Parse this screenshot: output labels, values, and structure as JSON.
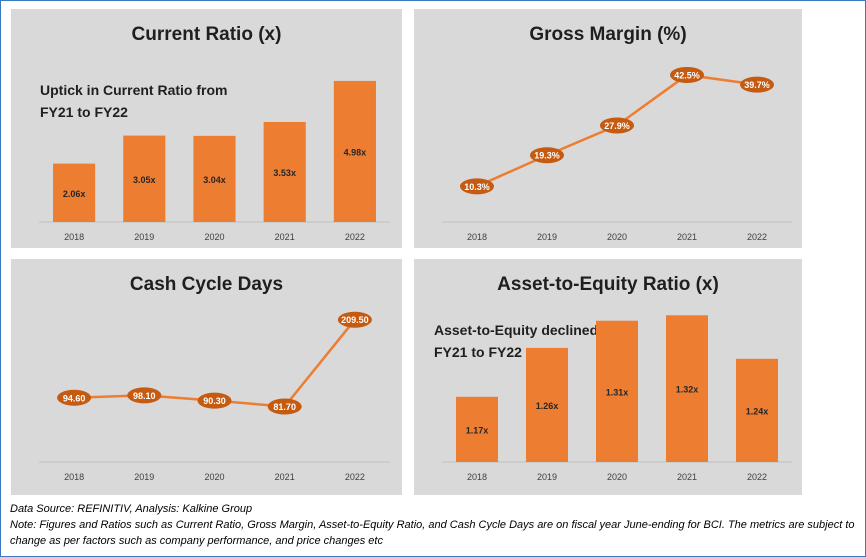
{
  "colors": {
    "accent": "#ed7d31",
    "marker": "#c55a11",
    "panel": "#d9d9d9",
    "axis": "#bfbfbf"
  },
  "chart_data": [
    {
      "type": "bar",
      "title": "Current Ratio (x)",
      "annotation": [
        "Uptick in Current Ratio from",
        "FY21 to FY22"
      ],
      "categories": [
        "2018",
        "2019",
        "2020",
        "2021",
        "2022"
      ],
      "values": [
        2.06,
        3.05,
        3.04,
        3.53,
        4.98
      ],
      "labels": [
        "2.06x",
        "3.05x",
        "3.04x",
        "3.53x",
        "4.98x"
      ],
      "ylim": [
        0,
        5.4
      ]
    },
    {
      "type": "line",
      "title": "Gross Margin (%)",
      "categories": [
        "2018",
        "2019",
        "2020",
        "2021",
        "2022"
      ],
      "values": [
        10.3,
        19.3,
        27.9,
        42.5,
        39.7
      ],
      "labels": [
        "10.3%",
        "19.3%",
        "27.9%",
        "42.5%",
        "39.7%"
      ],
      "ylim": [
        0,
        50
      ]
    },
    {
      "type": "line",
      "title": "Cash Cycle Days",
      "categories": [
        "2018",
        "2019",
        "2020",
        "2021",
        "2022"
      ],
      "values": [
        94.6,
        98.1,
        90.3,
        81.7,
        209.5
      ],
      "labels": [
        "94.60",
        "98.10",
        "90.30",
        "81.70",
        "209.50"
      ],
      "ylim": [
        0,
        240
      ]
    },
    {
      "type": "bar",
      "title": "Asset-to-Equity Ratio (x)",
      "annotation": [
        "Asset-to-Equity declined from",
        "FY21 to FY22"
      ],
      "categories": [
        "2018",
        "2019",
        "2020",
        "2021",
        "2022"
      ],
      "values": [
        1.17,
        1.26,
        1.31,
        1.32,
        1.24
      ],
      "labels": [
        "1.17x",
        "1.26x",
        "1.31x",
        "1.32x",
        "1.24x"
      ],
      "ylim": [
        1.05,
        1.35
      ]
    }
  ],
  "footer": {
    "source": "Data Source: REFINITIV, Analysis: Kalkine Group",
    "note_line1": "Note: Figures and Ratios such as Current Ratio, Gross Margin, Asset-to-Equity Ratio, and Cash Cycle Days are on fiscal year June-ending for BCI. The metrics are subject to",
    "note_line2": "change as per factors such as company performance, and price changes etc"
  }
}
